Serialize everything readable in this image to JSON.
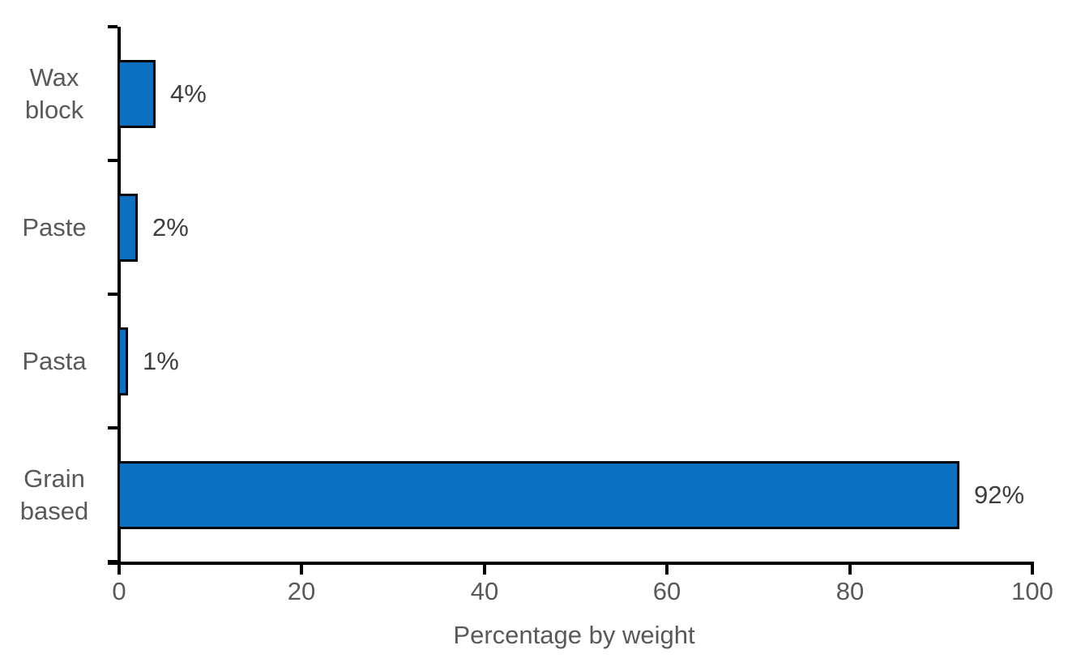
{
  "chart_data": {
    "type": "bar",
    "orientation": "horizontal",
    "categories": [
      "Wax block",
      "Paste",
      "Pasta",
      "Grain based"
    ],
    "values": [
      4,
      2,
      1,
      92
    ],
    "value_labels": [
      "4%",
      "2%",
      "1%",
      "92%"
    ],
    "title": "",
    "xlabel": "Percentage by weight",
    "ylabel": "",
    "xlim": [
      0,
      100
    ],
    "xticks": [
      0,
      20,
      40,
      60,
      80,
      100
    ],
    "xtick_labels": [
      "0",
      "20",
      "40",
      "60",
      "80",
      "100"
    ],
    "grid": false,
    "legend": false,
    "colors": {
      "bar_fill": "#0c70c0",
      "bar_border": "#000000",
      "axis": "#000000",
      "category_label": "#595959",
      "tick_label": "#595959",
      "axis_title": "#595959",
      "value_label": "#3d3d3d",
      "background": "#ffffff"
    }
  }
}
